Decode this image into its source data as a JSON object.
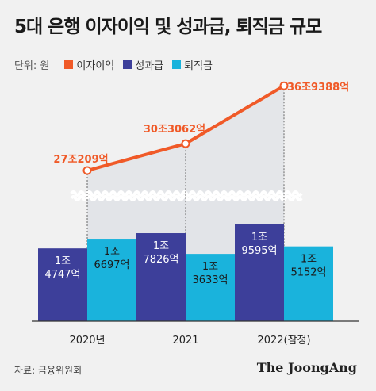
{
  "title": "5대 은행 이자이익 및 성과급, 퇴직금 규모",
  "legend": {
    "unit": "단위: 원",
    "items": [
      {
        "label": "이자이익",
        "color": "#f05a28"
      },
      {
        "label": "성과급",
        "color": "#3d3f9a"
      },
      {
        "label": "퇴직금",
        "color": "#1ab3dc"
      }
    ]
  },
  "source": "자료: 금융위원회",
  "brand": "The JoongAng",
  "chart_data": {
    "type": "bar",
    "categories": [
      "2020년",
      "2021",
      "2022(잠정)"
    ],
    "series": [
      {
        "name": "이자이익",
        "chart": "line",
        "color": "#f05a28",
        "values": [
          272209,
          303062,
          369388
        ],
        "labels": [
          "27조209억",
          "30조3062억",
          "36조9388억"
        ]
      },
      {
        "name": "성과급",
        "chart": "bar",
        "color": "#3d3f9a",
        "values": [
          14747,
          17826,
          19595
        ],
        "labels": [
          [
            "1조",
            "4747억"
          ],
          [
            "1조",
            "7826억"
          ],
          [
            "1조",
            "9595억"
          ]
        ]
      },
      {
        "name": "퇴직금",
        "chart": "bar",
        "color": "#1ab3dc",
        "values": [
          16697,
          13633,
          15152
        ],
        "labels": [
          [
            "1조",
            "6697억"
          ],
          [
            "1조",
            "3633억"
          ],
          [
            "1조",
            "5152억"
          ]
        ]
      }
    ],
    "axis_break": true,
    "grid": false
  }
}
